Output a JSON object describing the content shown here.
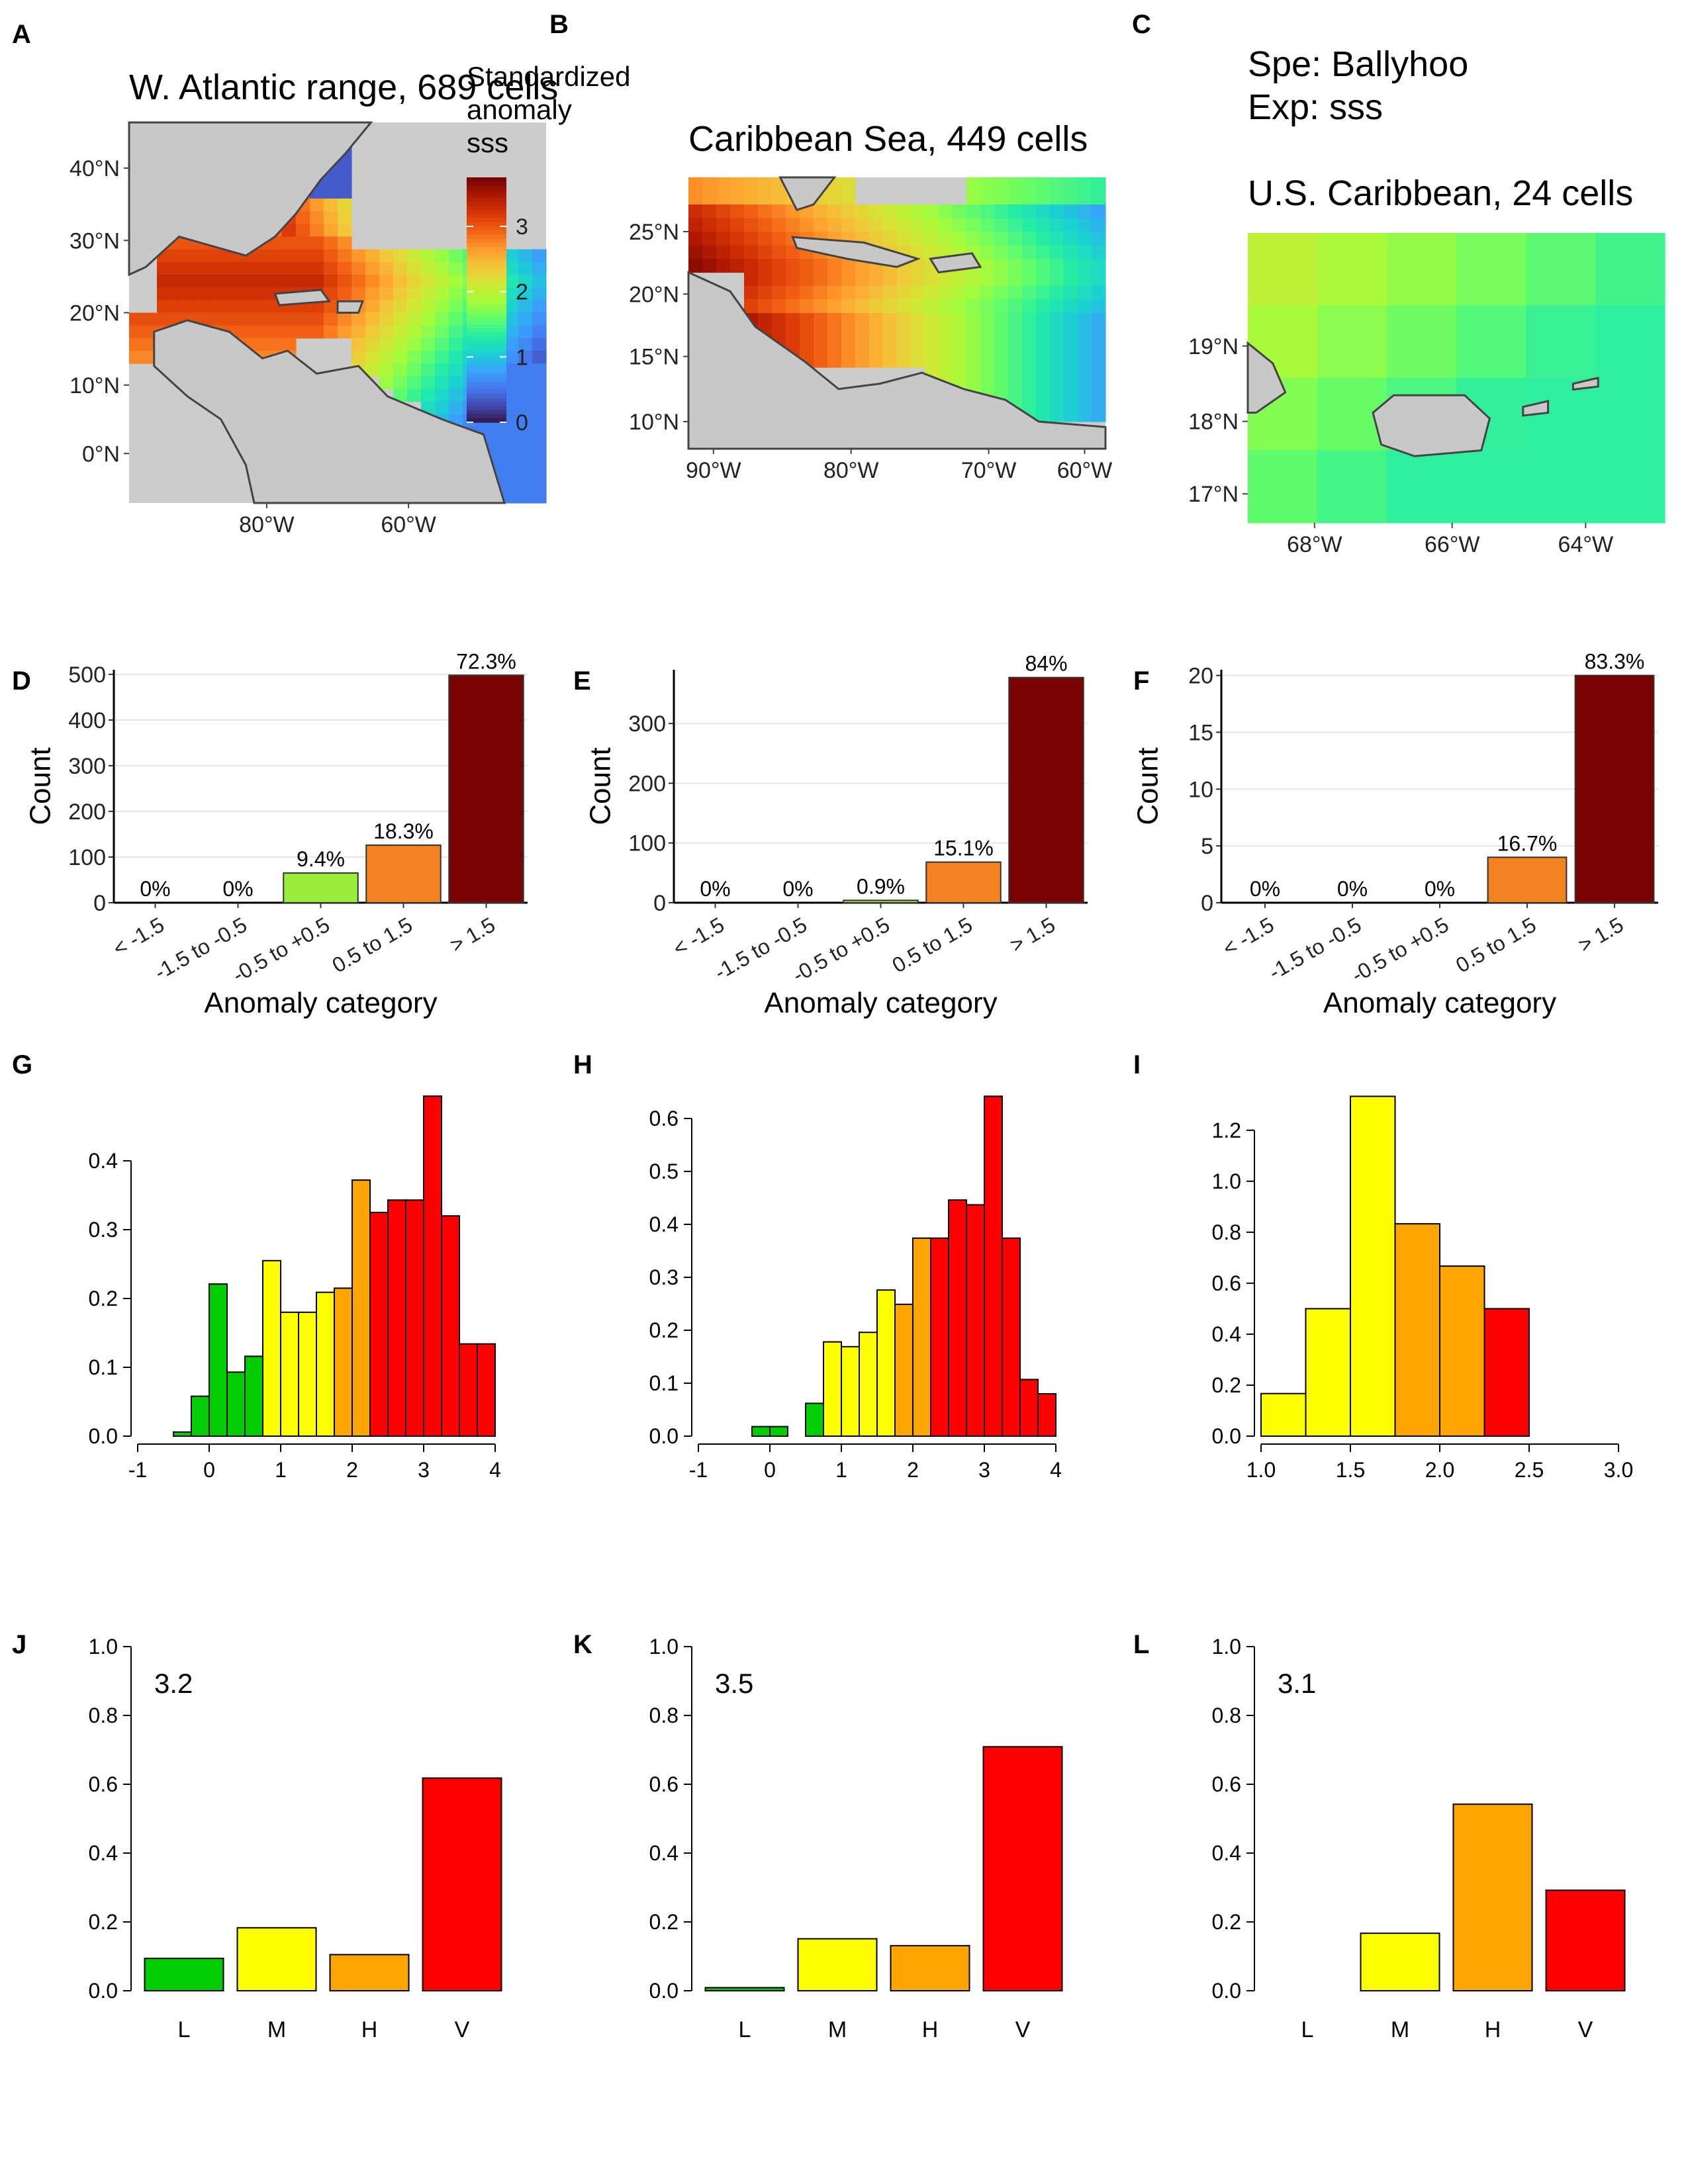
{
  "colors": {
    "map_bg": "#cccccc",
    "map_land": "#c8c8c8",
    "map_outline": "#444444",
    "grid": "#e6e6e6",
    "bar_D_colors": [
      "#ffffff",
      "#ffffff",
      "#9aee3a",
      "#f58220",
      "#7a0403"
    ],
    "hist_green": "#00cc00",
    "hist_yellow": "#ffff00",
    "hist_orange": "#ffa500",
    "hist_red": "#ff0000",
    "colorscale": [
      "#30123b",
      "#4145ab",
      "#4675ed",
      "#39a2fc",
      "#1bcfd4",
      "#24eca6",
      "#61fc6c",
      "#a4fc3b",
      "#d1e834",
      "#f3c63a",
      "#fe9b2d",
      "#f36315",
      "#d93806",
      "#b11901",
      "#7a0403"
    ]
  },
  "panels": {
    "A": {
      "letter": "A",
      "title": "W. Atlantic range, 689 cells",
      "legend_title": [
        "Standardized",
        "anomaly",
        "sss"
      ],
      "legend_ticks": [
        "0",
        "1",
        "2",
        "3"
      ],
      "y_ticks": [
        "40°N",
        "30°N",
        "20°N",
        "10°N",
        "0°N"
      ],
      "x_ticks": [
        "80°W",
        "60°W"
      ]
    },
    "B": {
      "letter": "B",
      "title": "Caribbean Sea, 449 cells",
      "y_ticks": [
        "25°N",
        "20°N",
        "15°N",
        "10°N"
      ],
      "x_ticks": [
        "90°W",
        "80°W",
        "70°W",
        "60°W"
      ]
    },
    "C": {
      "letter": "C",
      "subtitle_lines": [
        "Spe: Ballyhoo",
        "Exp: sss"
      ],
      "title": "U.S. Caribbean, 24 cells",
      "y_ticks": [
        "19°N",
        "18°N",
        "17°N"
      ],
      "x_ticks": [
        "68°W",
        "66°W",
        "64°W"
      ]
    }
  },
  "chart_data": [
    {
      "panel": "D",
      "type": "bar",
      "categories": [
        "< -1.5",
        "-1.5 to -0.5",
        "-0.5 to +0.5",
        "0.5 to 1.5",
        "> 1.5"
      ],
      "values": [
        0,
        0,
        65,
        126,
        498
      ],
      "bar_labels": [
        "0%",
        "0%",
        "9.4%",
        "18.3%",
        "72.3%"
      ],
      "ylabel": "Count",
      "xlabel": "Anomaly category",
      "ylim": [
        0,
        510
      ],
      "y_ticks": [
        "0",
        "100",
        "200",
        "300",
        "400",
        "500"
      ],
      "grid": true
    },
    {
      "panel": "E",
      "type": "bar",
      "categories": [
        "< -1.5",
        "-1.5 to -0.5",
        "-0.5 to +0.5",
        "0.5 to 1.5",
        "> 1.5"
      ],
      "values": [
        0,
        0,
        4,
        68,
        377
      ],
      "bar_labels": [
        "0%",
        "0%",
        "0.9%",
        "15.1%",
        "84%"
      ],
      "ylabel": "Count",
      "xlabel": "Anomaly category",
      "ylim": [
        0,
        390
      ],
      "y_ticks": [
        "0",
        "100",
        "200",
        "300"
      ],
      "grid": true
    },
    {
      "panel": "F",
      "type": "bar",
      "categories": [
        "< -1.5",
        "-1.5 to -0.5",
        "-0.5 to +0.5",
        "0.5 to 1.5",
        "> 1.5"
      ],
      "values": [
        0,
        0,
        0,
        4,
        20
      ],
      "bar_labels": [
        "0%",
        "0%",
        "0%",
        "16.7%",
        "83.3%"
      ],
      "ylabel": "Count",
      "xlabel": "Anomaly category",
      "ylim": [
        0,
        20.5
      ],
      "y_ticks": [
        "0",
        "5",
        "10",
        "15",
        "20"
      ],
      "grid": true
    },
    {
      "panel": "G",
      "type": "histogram",
      "bin_start": -0.5,
      "bin_width": 0.25,
      "values": [
        0.006,
        0.058,
        0.221,
        0.093,
        0.116,
        0.255,
        0.18,
        0.18,
        0.209,
        0.215,
        0.372,
        0.325,
        0.343,
        0.343,
        0.494,
        0.32,
        0.134,
        0.134
      ],
      "bar_colors": [
        "green",
        "green",
        "green",
        "green",
        "green",
        "yellow",
        "yellow",
        "yellow",
        "yellow",
        "orange",
        "orange",
        "red",
        "red",
        "red",
        "red",
        "red",
        "red",
        "red"
      ],
      "xlim": [
        -1,
        4
      ],
      "x_ticks": [
        "-1",
        "0",
        "1",
        "2",
        "3",
        "4"
      ],
      "ylim": [
        0,
        0.5
      ],
      "y_ticks": [
        "0.0",
        "0.1",
        "0.2",
        "0.3",
        "0.4"
      ]
    },
    {
      "panel": "H",
      "type": "histogram",
      "bin_start": -0.25,
      "bin_width": 0.25,
      "values": [
        0.018,
        0.018,
        0,
        0.062,
        0.178,
        0.169,
        0.196,
        0.276,
        0.249,
        0.374,
        0.374,
        0.446,
        0.437,
        0.642,
        0.374,
        0.107,
        0.08
      ],
      "bar_colors": [
        "green",
        "green",
        "green",
        "green",
        "yellow",
        "yellow",
        "yellow",
        "yellow",
        "orange",
        "orange",
        "red",
        "red",
        "red",
        "red",
        "red",
        "red",
        "red"
      ],
      "xlim": [
        -1,
        4
      ],
      "x_ticks": [
        "-1",
        "0",
        "1",
        "2",
        "3",
        "4"
      ],
      "ylim": [
        0,
        0.65
      ],
      "y_ticks": [
        "0.0",
        "0.1",
        "0.2",
        "0.3",
        "0.4",
        "0.5",
        "0.6"
      ]
    },
    {
      "panel": "I",
      "type": "histogram",
      "bin_start": 1.0,
      "bin_width": 0.25,
      "values": [
        0.167,
        0.5,
        1.333,
        0.833,
        0.667,
        0.5
      ],
      "bar_colors": [
        "yellow",
        "yellow",
        "yellow",
        "orange",
        "orange",
        "red"
      ],
      "xlim": [
        1.0,
        3.0
      ],
      "x_ticks": [
        "1.0",
        "1.5",
        "2.0",
        "2.5",
        "3.0"
      ],
      "ylim": [
        0,
        1.35
      ],
      "y_ticks": [
        "0.0",
        "0.2",
        "0.4",
        "0.6",
        "0.8",
        "1.0",
        "1.2"
      ]
    },
    {
      "panel": "J",
      "type": "bar",
      "categories": [
        "L",
        "M",
        "H",
        "V"
      ],
      "values": [
        0.094,
        0.183,
        0.105,
        0.618
      ],
      "bar_colors": [
        "green",
        "yellow",
        "orange",
        "red"
      ],
      "annotation": "3.2",
      "ylim": [
        0,
        1.0
      ],
      "y_ticks": [
        "0.0",
        "0.2",
        "0.4",
        "0.6",
        "0.8",
        "1.0"
      ]
    },
    {
      "panel": "K",
      "type": "bar",
      "categories": [
        "L",
        "M",
        "H",
        "V"
      ],
      "values": [
        0.009,
        0.151,
        0.131,
        0.709
      ],
      "bar_colors": [
        "green",
        "yellow",
        "orange",
        "red"
      ],
      "annotation": "3.5",
      "ylim": [
        0,
        1.0
      ],
      "y_ticks": [
        "0.0",
        "0.2",
        "0.4",
        "0.6",
        "0.8",
        "1.0"
      ]
    },
    {
      "panel": "L",
      "type": "bar",
      "categories": [
        "L",
        "M",
        "H",
        "V"
      ],
      "values": [
        0,
        0.167,
        0.542,
        0.292
      ],
      "bar_colors": [
        "green",
        "yellow",
        "orange",
        "red"
      ],
      "annotation": "3.1",
      "ylim": [
        0,
        1.0
      ],
      "y_ticks": [
        "0.0",
        "0.2",
        "0.4",
        "0.6",
        "0.8",
        "1.0"
      ]
    }
  ]
}
